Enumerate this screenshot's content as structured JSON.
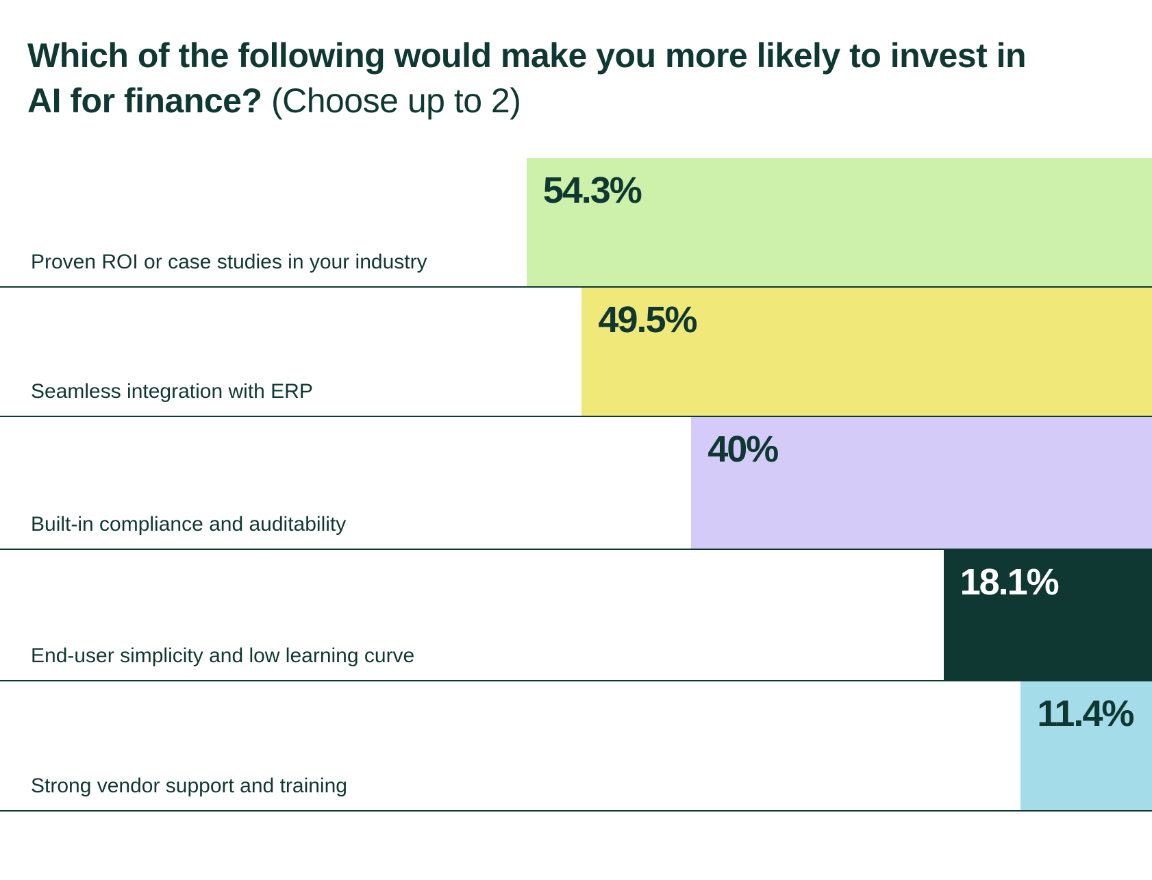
{
  "chart_data": {
    "type": "bar",
    "orientation": "horizontal",
    "title": "Which of the following would make you more likely to invest in AI for finance?",
    "subtitle": "(Choose up to 2)",
    "categories": [
      "Proven ROI or case studies in your industry",
      "Seamless integration with ERP",
      "Built-in compliance and auditability",
      "End-user simplicity and low learning curve",
      "Strong vendor support and training"
    ],
    "values": [
      54.3,
      49.5,
      40,
      18.1,
      11.4
    ],
    "labels": [
      "54.3%",
      "49.5%",
      "40%",
      "18.1%",
      "11.4%"
    ],
    "colors": [
      "#cdf0aa",
      "#f1e87a",
      "#d5cbf9",
      "#0f3832",
      "#a5dcea"
    ],
    "label_colors": [
      "#0f3832",
      "#0f3832",
      "#0f3832",
      "#ffffff",
      "#0f3832"
    ],
    "unit": "%",
    "grid": false,
    "legend": "none"
  }
}
